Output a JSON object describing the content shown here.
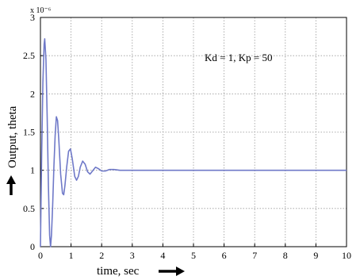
{
  "chart_data": {
    "type": "line",
    "title": "",
    "xlabel": "time, sec",
    "ylabel": "Output, theta",
    "y_exponent": "x 10⁻⁶",
    "xlim": [
      0,
      10
    ],
    "ylim": [
      0,
      3
    ],
    "x_ticks": [
      "0",
      "1",
      "2",
      "3",
      "4",
      "5",
      "6",
      "7",
      "8",
      "9",
      "10"
    ],
    "y_ticks": [
      "0",
      "0.5",
      "1",
      "1.5",
      "2",
      "2.5",
      "3"
    ],
    "grid": true,
    "annotation": "Kd = 1, Kp = 50",
    "line_color": "#6f79c8",
    "series": [
      {
        "values": [
          [
            0.0,
            0.0
          ],
          [
            0.04,
            1.2
          ],
          [
            0.08,
            2.15
          ],
          [
            0.12,
            2.65
          ],
          [
            0.14,
            2.72
          ],
          [
            0.18,
            2.45
          ],
          [
            0.22,
            1.7
          ],
          [
            0.26,
            0.8
          ],
          [
            0.3,
            0.15
          ],
          [
            0.33,
            0.0
          ],
          [
            0.36,
            0.15
          ],
          [
            0.4,
            0.55
          ],
          [
            0.44,
            1.05
          ],
          [
            0.48,
            1.45
          ],
          [
            0.52,
            1.7
          ],
          [
            0.56,
            1.65
          ],
          [
            0.6,
            1.4
          ],
          [
            0.66,
            0.95
          ],
          [
            0.72,
            0.7
          ],
          [
            0.76,
            0.68
          ],
          [
            0.8,
            0.8
          ],
          [
            0.86,
            1.05
          ],
          [
            0.92,
            1.25
          ],
          [
            0.98,
            1.28
          ],
          [
            1.04,
            1.15
          ],
          [
            1.12,
            0.92
          ],
          [
            1.18,
            0.87
          ],
          [
            1.24,
            0.92
          ],
          [
            1.3,
            1.04
          ],
          [
            1.38,
            1.12
          ],
          [
            1.46,
            1.08
          ],
          [
            1.54,
            0.98
          ],
          [
            1.62,
            0.95
          ],
          [
            1.7,
            0.99
          ],
          [
            1.8,
            1.04
          ],
          [
            1.9,
            1.02
          ],
          [
            2.0,
            0.99
          ],
          [
            2.12,
            0.99
          ],
          [
            2.25,
            1.01
          ],
          [
            2.4,
            1.01
          ],
          [
            2.6,
            1.0
          ],
          [
            3.0,
            1.0
          ],
          [
            10.0,
            1.0
          ]
        ]
      }
    ]
  }
}
